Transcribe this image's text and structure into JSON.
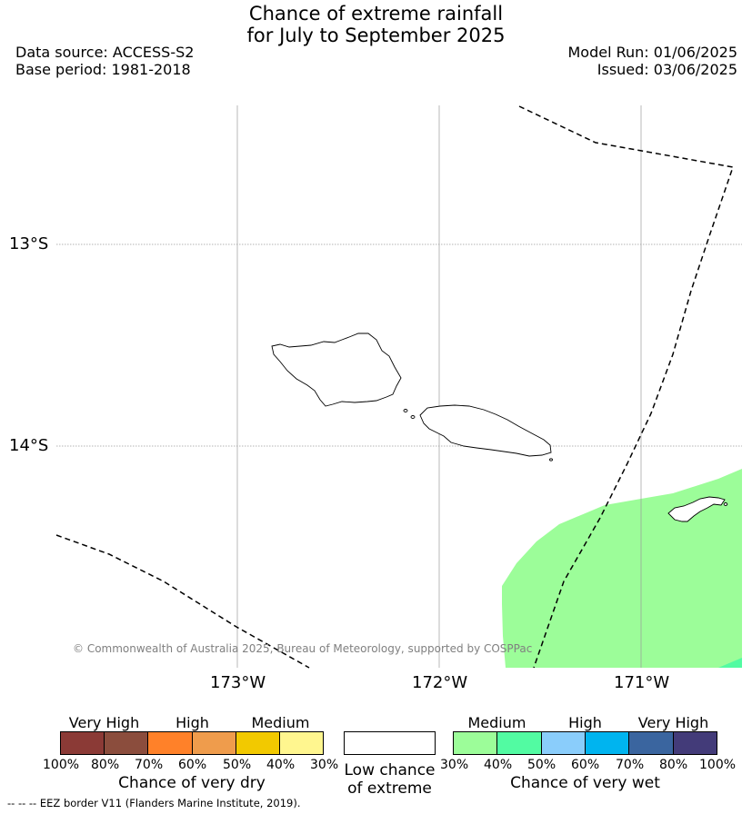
{
  "title": {
    "line1": "Chance of extreme rainfall",
    "line2": "for July to September 2025"
  },
  "meta": {
    "data_source": "Data source: ACCESS-S2",
    "base_period": "Base period: 1981-2018",
    "model_run": "Model Run: 01/06/2025",
    "issued": "Issued: 03/06/2025"
  },
  "map": {
    "lat_labels": [
      "13°S",
      "14°S"
    ],
    "lon_labels": [
      "173°W",
      "172°W",
      "171°W"
    ],
    "copyright": "© Commonwealth of Australia 2025, Bureau of Meteorology, supported by COSPPac",
    "wet_shading_color": "#9cfd99"
  },
  "colorbars": {
    "dry": {
      "categories": [
        "Very High",
        "High",
        "Medium"
      ],
      "colors": [
        "#8b3a36",
        "#8b4d3d",
        "#ff8129",
        "#ef9c4c",
        "#f2c900",
        "#fff68f"
      ],
      "ticks": [
        "100%",
        "80%",
        "70%",
        "60%",
        "50%",
        "40%",
        "30%"
      ],
      "label": "Chance of very dry"
    },
    "low": {
      "label_line1": "Low chance",
      "label_line2": "of extreme",
      "color": "#ffffff"
    },
    "wet": {
      "categories": [
        "Medium",
        "High",
        "Very High"
      ],
      "colors": [
        "#9cfd99",
        "#52fba2",
        "#8acdfb",
        "#00b4ef",
        "#3a659f",
        "#433b79"
      ],
      "ticks": [
        "30%",
        "40%",
        "50%",
        "60%",
        "70%",
        "80%",
        "100%"
      ],
      "label": "Chance of very wet"
    }
  },
  "footer": {
    "legend_line": "--  --  --",
    "text": "EEZ border V11 (Flanders Marine Institute, 2019)."
  }
}
